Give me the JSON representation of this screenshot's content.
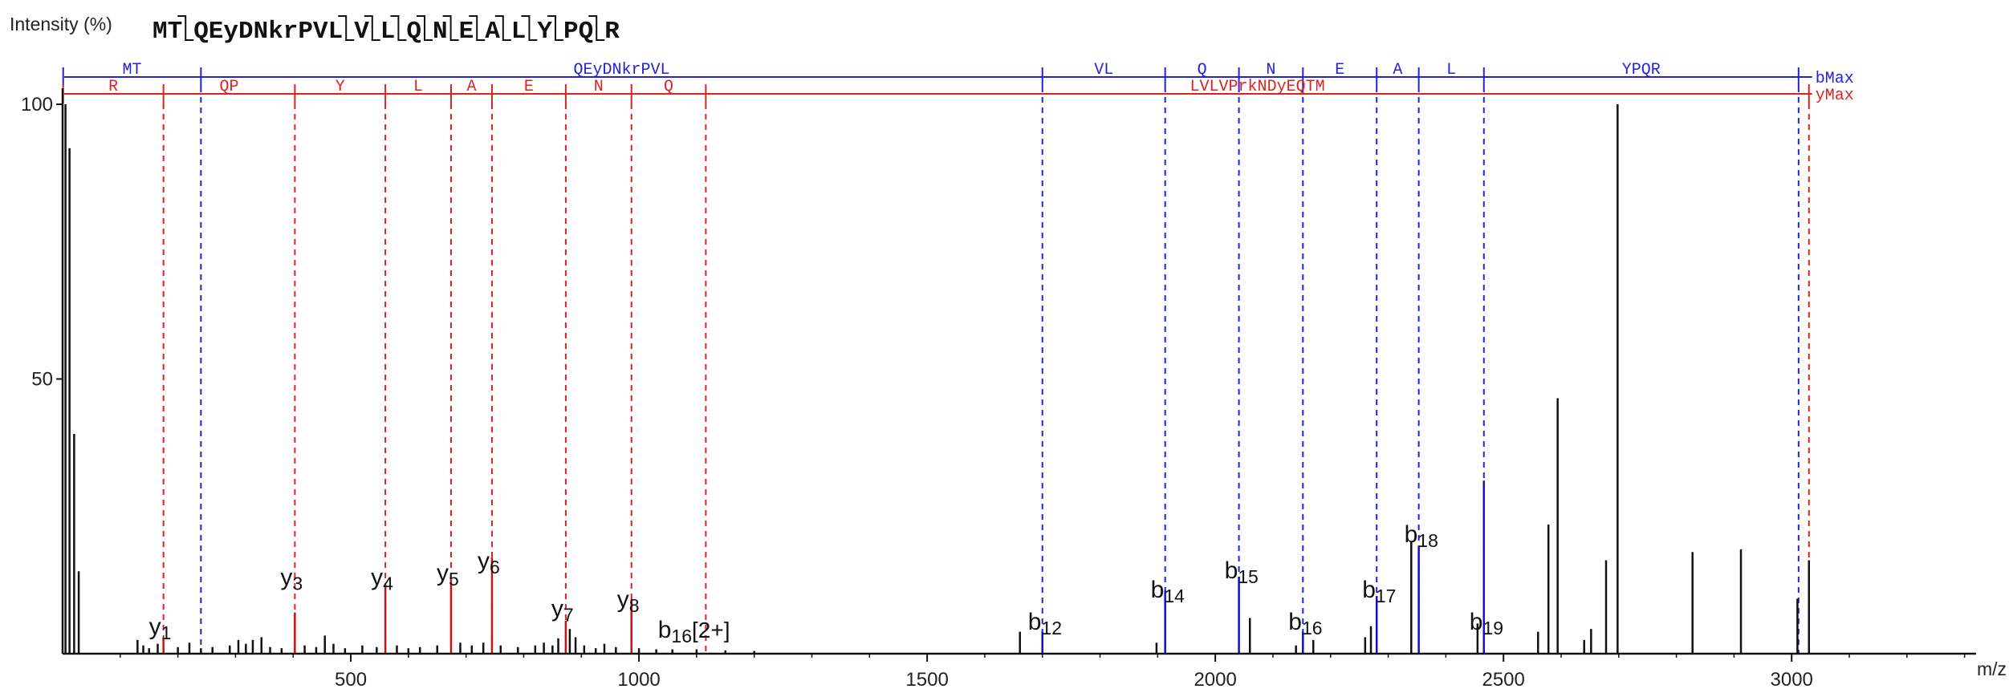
{
  "chart_data": {
    "type": "bar",
    "ylabel": "Intensity (%)",
    "xlabel": "m/z",
    "xlim": [
      0,
      3320
    ],
    "ylim": [
      0,
      100
    ],
    "x_ticks": [
      500,
      1000,
      1500,
      2000,
      2500,
      3000
    ],
    "y_ticks": [
      50,
      100
    ],
    "sequence_segments": [
      "MT",
      "QEyDNkrPVL",
      "V",
      "L",
      "Q",
      "N",
      "E",
      "A",
      "L",
      "Y",
      "PQ",
      "R"
    ],
    "b_ladder": {
      "name": "bMax",
      "color": "#2222dd",
      "cleavages": [
        240,
        1700,
        1913,
        2041,
        2152,
        2280,
        2353,
        2466,
        3012
      ],
      "labels": [
        "MT",
        "QEyDNkrPVL",
        "VL",
        "Q",
        "N",
        "E",
        "A",
        "L",
        "YPQR"
      ]
    },
    "y_ladder": {
      "name": "yMax",
      "color": "#dd2222",
      "cleavages": [
        175,
        403,
        560,
        674,
        745,
        873,
        987,
        1116,
        3030
      ],
      "labels": [
        "R",
        "QP",
        "Y",
        "L",
        "A",
        "E",
        "N",
        "Q",
        "LVLVPrkNDyEQTM"
      ]
    },
    "annotations": [
      {
        "text": "y",
        "sub": "1",
        "x": 175,
        "label_y": 3.5
      },
      {
        "text": "y",
        "sub": "3",
        "x": 403,
        "label_y": 12.5
      },
      {
        "text": "y",
        "sub": "4",
        "x": 560,
        "label_y": 12.5
      },
      {
        "text": "y",
        "sub": "5",
        "x": 674,
        "label_y": 13.3
      },
      {
        "text": "y",
        "sub": "6",
        "x": 745,
        "label_y": 15.5
      },
      {
        "text": "y",
        "sub": "7",
        "x": 873,
        "label_y": 6.8
      },
      {
        "text": "y",
        "sub": "8",
        "x": 987,
        "label_y": 8.5
      },
      {
        "text": "b",
        "sub": "16",
        "x": 1058,
        "label_y": 2.9,
        "suffix": "[2+]"
      },
      {
        "text": "b",
        "sub": "12",
        "x": 1700,
        "label_y": 4.4
      },
      {
        "text": "b",
        "sub": "14",
        "x": 1913,
        "label_y": 10.2
      },
      {
        "text": "b",
        "sub": "15",
        "x": 2041,
        "label_y": 13.7
      },
      {
        "text": "b",
        "sub": "16",
        "x": 2152,
        "label_y": 4.4
      },
      {
        "text": "b",
        "sub": "17",
        "x": 2280,
        "label_y": 10.2
      },
      {
        "text": "b",
        "sub": "18",
        "x": 2353,
        "label_y": 20.3
      },
      {
        "text": "b",
        "sub": "19",
        "x": 2466,
        "label_y": 4.4
      }
    ],
    "peaks": [
      {
        "x": 5,
        "y": 100
      },
      {
        "x": 12,
        "y": 92
      },
      {
        "x": 20,
        "y": 40
      },
      {
        "x": 28,
        "y": 15
      },
      {
        "x": 130,
        "y": 2.5
      },
      {
        "x": 140,
        "y": 1.5
      },
      {
        "x": 150,
        "y": 1.0
      },
      {
        "x": 165,
        "y": 1.8
      },
      {
        "x": 175,
        "y": 2.8
      },
      {
        "x": 200,
        "y": 1.2
      },
      {
        "x": 220,
        "y": 2.0
      },
      {
        "x": 240,
        "y": 1.0
      },
      {
        "x": 260,
        "y": 1.2
      },
      {
        "x": 290,
        "y": 1.5
      },
      {
        "x": 305,
        "y": 2.5
      },
      {
        "x": 318,
        "y": 1.8
      },
      {
        "x": 330,
        "y": 2.5
      },
      {
        "x": 345,
        "y": 3.0
      },
      {
        "x": 360,
        "y": 1.2
      },
      {
        "x": 380,
        "y": 1.0
      },
      {
        "x": 403,
        "y": 7.5
      },
      {
        "x": 420,
        "y": 1.5
      },
      {
        "x": 440,
        "y": 1.2
      },
      {
        "x": 455,
        "y": 3.3
      },
      {
        "x": 470,
        "y": 1.8
      },
      {
        "x": 490,
        "y": 1.0
      },
      {
        "x": 520,
        "y": 1.5
      },
      {
        "x": 545,
        "y": 1.2
      },
      {
        "x": 560,
        "y": 12.5
      },
      {
        "x": 580,
        "y": 1.5
      },
      {
        "x": 600,
        "y": 1.0
      },
      {
        "x": 620,
        "y": 1.2
      },
      {
        "x": 650,
        "y": 1.5
      },
      {
        "x": 674,
        "y": 13.5
      },
      {
        "x": 690,
        "y": 2.0
      },
      {
        "x": 710,
        "y": 1.5
      },
      {
        "x": 730,
        "y": 2.0
      },
      {
        "x": 745,
        "y": 17.5
      },
      {
        "x": 760,
        "y": 1.5
      },
      {
        "x": 790,
        "y": 1.2
      },
      {
        "x": 820,
        "y": 1.5
      },
      {
        "x": 835,
        "y": 2.0
      },
      {
        "x": 850,
        "y": 1.5
      },
      {
        "x": 860,
        "y": 2.8
      },
      {
        "x": 873,
        "y": 6.0
      },
      {
        "x": 880,
        "y": 4.5
      },
      {
        "x": 890,
        "y": 3.0
      },
      {
        "x": 905,
        "y": 1.5
      },
      {
        "x": 925,
        "y": 1.0
      },
      {
        "x": 940,
        "y": 1.8
      },
      {
        "x": 960,
        "y": 1.2
      },
      {
        "x": 987,
        "y": 10.0
      },
      {
        "x": 1000,
        "y": 1.0
      },
      {
        "x": 1030,
        "y": 0.8
      },
      {
        "x": 1058,
        "y": 0.8
      },
      {
        "x": 1100,
        "y": 0.8
      },
      {
        "x": 1150,
        "y": 0.6
      },
      {
        "x": 1200,
        "y": 0.5
      },
      {
        "x": 1661,
        "y": 4.0
      },
      {
        "x": 1700,
        "y": 4.0
      },
      {
        "x": 1898,
        "y": 2.0
      },
      {
        "x": 1913,
        "y": 11.5
      },
      {
        "x": 2041,
        "y": 14.0
      },
      {
        "x": 2060,
        "y": 6.5
      },
      {
        "x": 2140,
        "y": 1.5
      },
      {
        "x": 2152,
        "y": 4.0
      },
      {
        "x": 2170,
        "y": 2.5
      },
      {
        "x": 2260,
        "y": 3.0
      },
      {
        "x": 2270,
        "y": 5.0
      },
      {
        "x": 2280,
        "y": 10.5
      },
      {
        "x": 2340,
        "y": 20.5
      },
      {
        "x": 2353,
        "y": 19.5
      },
      {
        "x": 2455,
        "y": 5.5
      },
      {
        "x": 2466,
        "y": 31.5
      },
      {
        "x": 2560,
        "y": 4.0
      },
      {
        "x": 2578,
        "y": 23.5
      },
      {
        "x": 2594,
        "y": 46.5
      },
      {
        "x": 2640,
        "y": 2.5
      },
      {
        "x": 2652,
        "y": 4.5
      },
      {
        "x": 2678,
        "y": 17.0
      },
      {
        "x": 2698,
        "y": 100
      },
      {
        "x": 2828,
        "y": 18.5
      },
      {
        "x": 2912,
        "y": 19.0
      },
      {
        "x": 3010,
        "y": 10.0
      },
      {
        "x": 3030,
        "y": 17.0
      }
    ]
  }
}
